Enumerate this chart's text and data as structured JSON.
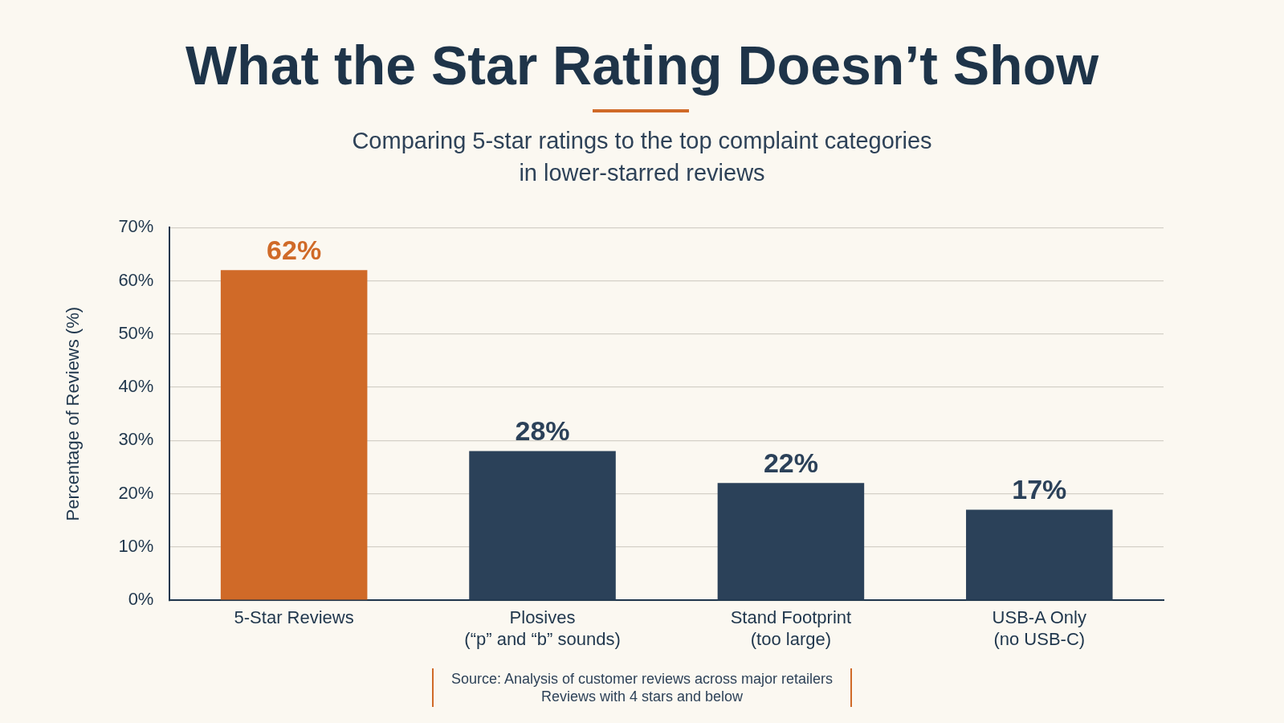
{
  "chart_data": {
    "type": "bar",
    "title": "What the Star Rating Doesn’t Show",
    "subtitle": "Comparing 5-star ratings to the top complaint categories\nin lower-starred reviews",
    "ylabel": "Percentage of Reviews (%)",
    "categories": [
      "5-Star Reviews",
      "Plosives\n(“p” and “b” sounds)",
      "Stand Footprint\n(too large)",
      "USB-A Only\n(no USB-C)"
    ],
    "values": [
      62,
      28,
      22,
      17
    ],
    "colors": [
      "#d06a28",
      "#2b4159",
      "#2b4159",
      "#2b4159"
    ],
    "value_labels": [
      "62%",
      "28%",
      "22%",
      "17%"
    ],
    "ylim": [
      0,
      70
    ],
    "yticks": [
      {
        "value": 0,
        "label": "0%"
      },
      {
        "value": 10,
        "label": "10%"
      },
      {
        "value": 20,
        "label": "20%"
      },
      {
        "value": 30,
        "label": "30%"
      },
      {
        "value": 40,
        "label": "40%"
      },
      {
        "value": 50,
        "label": "50%"
      },
      {
        "value": 60,
        "label": "60%"
      },
      {
        "value": 70,
        "label": "70%"
      }
    ],
    "grid": "y",
    "annotations": [
      "Source: Analysis of customer reviews across major retailers\nReviews with 4 stars and below"
    ]
  }
}
